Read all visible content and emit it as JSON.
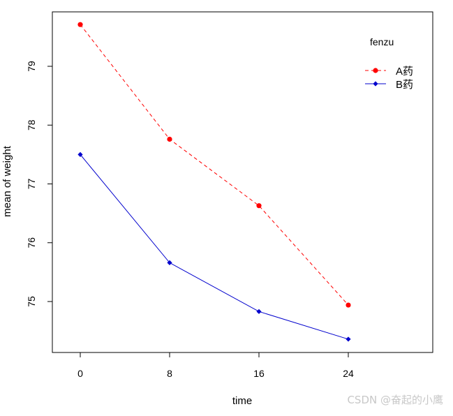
{
  "chart_data": {
    "type": "line",
    "x": [
      0,
      8,
      16,
      24
    ],
    "categories": [
      "0",
      "8",
      "16",
      "24"
    ],
    "xlabel": "time",
    "ylabel": "mean of  weight",
    "ylim": [
      74.15,
      80.0
    ],
    "yticks": [
      75,
      76,
      77,
      78,
      79
    ],
    "grid": false,
    "legend": {
      "title": "fenzu",
      "placement": "top-right"
    },
    "series": [
      {
        "name": "A药",
        "values": [
          79.71,
          77.76,
          76.63,
          74.94
        ],
        "color": "#ff0000",
        "line_style": "dashed",
        "marker": "circle"
      },
      {
        "name": "B药",
        "values": [
          77.5,
          75.66,
          74.83,
          74.36
        ],
        "color": "#0000cd",
        "line_style": "solid",
        "marker": "diamond"
      }
    ]
  },
  "watermark": "CSDN @奋起的小鹰"
}
